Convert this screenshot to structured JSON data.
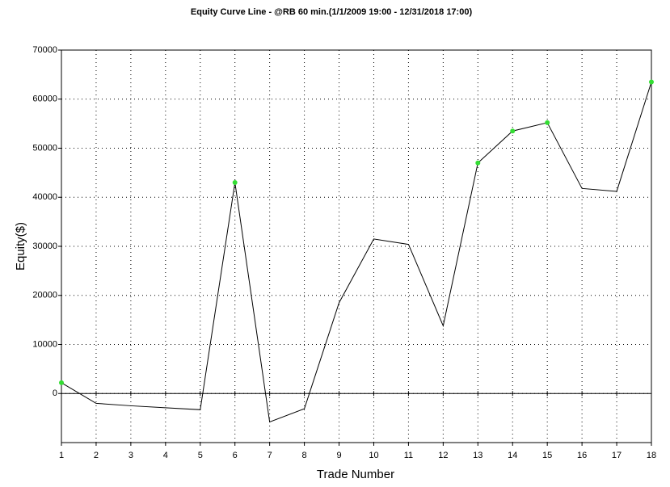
{
  "chart_data": {
    "type": "line",
    "title": "Equity Curve Line - @RB 60 min.(1/1/2009 19:00 - 12/31/2018 17:00)",
    "x_label": "Trade Number",
    "y_label": "Equity($)",
    "x": [
      1,
      2,
      3,
      4,
      5,
      6,
      7,
      8,
      9,
      10,
      11,
      12,
      13,
      14,
      15,
      16,
      17,
      18
    ],
    "series": [
      {
        "name": "Equity",
        "color": "#000000",
        "marker_color": "#33dd33",
        "values": [
          2200,
          -2000,
          -2500,
          -2900,
          -3300,
          43000,
          -5800,
          -3100,
          18500,
          31500,
          30400,
          13800,
          47000,
          53500,
          55200,
          41800,
          41200,
          63500
        ]
      }
    ],
    "xlim": [
      1,
      18
    ],
    "xticks": [
      1,
      2,
      3,
      4,
      5,
      6,
      7,
      8,
      9,
      10,
      11,
      12,
      13,
      14,
      15,
      16,
      17,
      18
    ],
    "ylim": [
      -10000,
      70000
    ],
    "yticks": [
      0,
      10000,
      20000,
      30000,
      40000,
      50000,
      60000,
      70000
    ],
    "grid": true
  }
}
